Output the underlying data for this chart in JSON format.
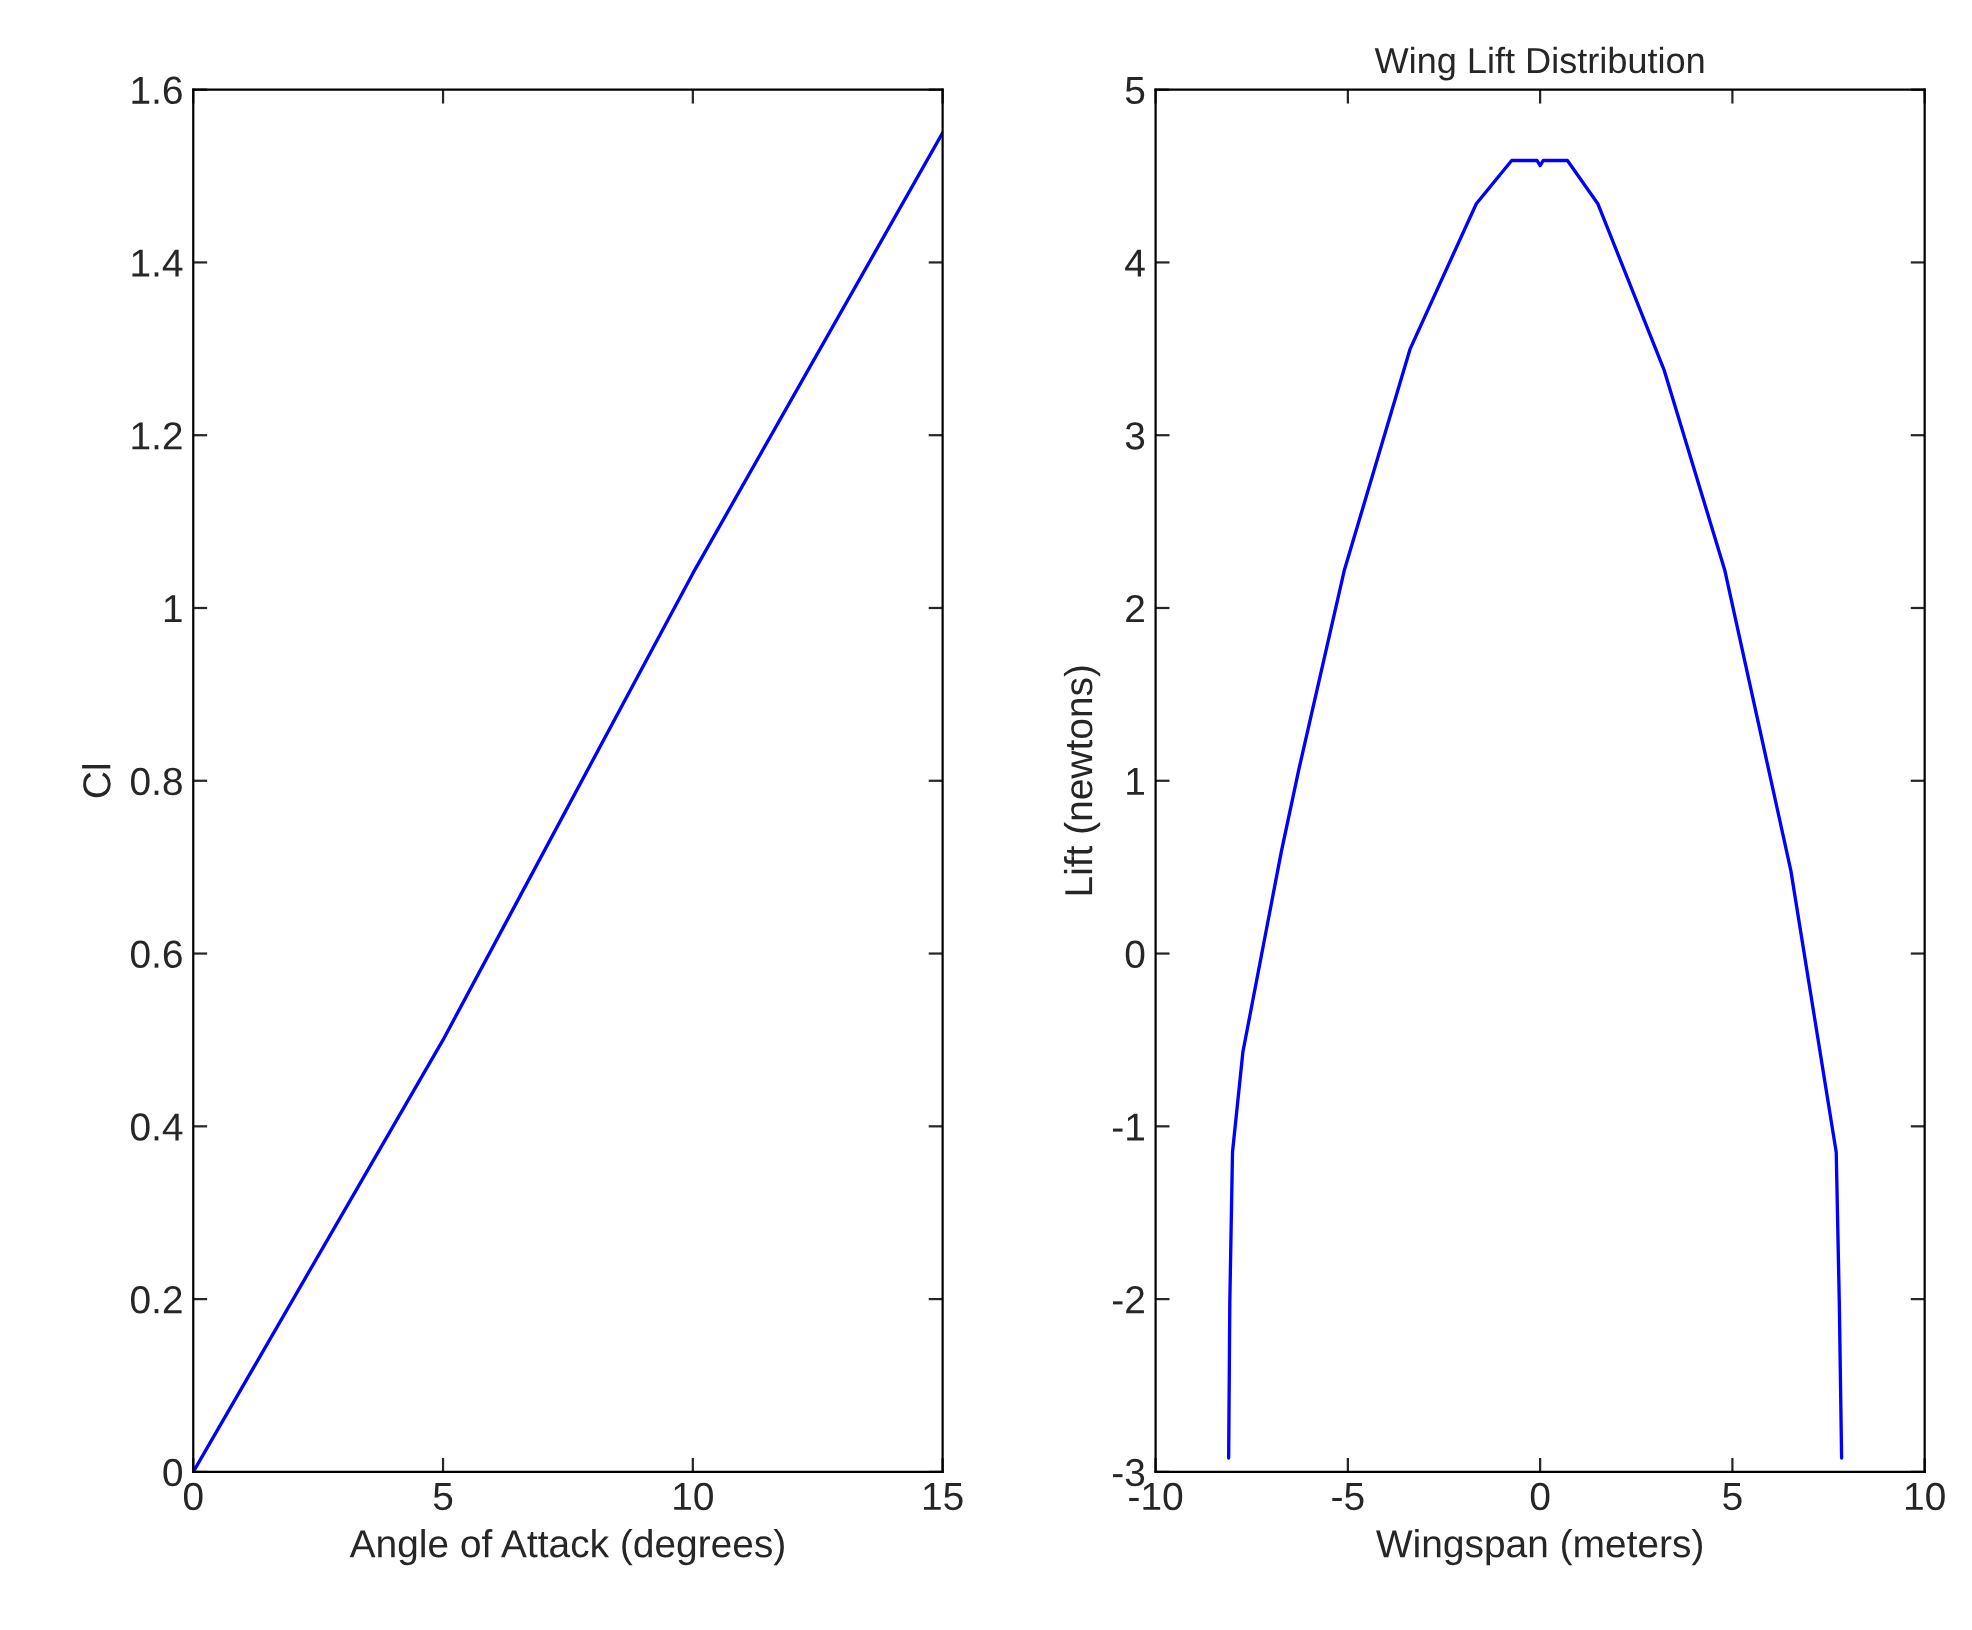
{
  "chart_data": [
    {
      "type": "line",
      "xlabel": "Angle of Attack (degrees)",
      "ylabel": "Cl",
      "x": [
        0,
        5,
        10,
        15
      ],
      "series": [
        {
          "color": "#0000ff",
          "values": [
            0,
            0.5,
            1.04,
            1.55
          ]
        }
      ],
      "xlim": [
        0,
        15
      ],
      "xticks": [
        0,
        5,
        10,
        15
      ],
      "ylim": [
        0,
        1.6
      ],
      "yticks": [
        0,
        0.2,
        0.4,
        0.6,
        0.8,
        1,
        1.2,
        1.4,
        1.6
      ],
      "grid": false,
      "legend": false
    },
    {
      "type": "line",
      "title": "Wing Lift Distribution",
      "xlabel": "Wingspan (meters)",
      "ylabel": "Lift (newtons)",
      "series": [
        {
          "color": "#0000ff",
          "x": [
            -8.1,
            -8.07,
            -8.0,
            -7.73,
            -6.73,
            -6.28,
            -5.09,
            -3.38,
            -1.66,
            -0.74,
            -0.08,
            0,
            0.08,
            0.71,
            1.5,
            3.22,
            4.8,
            6.52,
            7.7,
            7.78,
            7.84
          ],
          "values": [
            -2.92,
            -2.02,
            -1.15,
            -0.57,
            0.59,
            1.06,
            2.22,
            3.5,
            4.34,
            4.59,
            4.59,
            4.56,
            4.59,
            4.59,
            4.34,
            3.38,
            2.22,
            0.48,
            -1.15,
            -2.02,
            -2.92
          ]
        }
      ],
      "xlim": [
        -10,
        10
      ],
      "xticks": [
        -10,
        -5,
        0,
        5,
        10
      ],
      "ylim": [
        -3,
        5
      ],
      "yticks": [
        -3,
        -2,
        -1,
        0,
        1,
        2,
        3,
        4,
        5
      ],
      "grid": false,
      "legend": false
    }
  ]
}
